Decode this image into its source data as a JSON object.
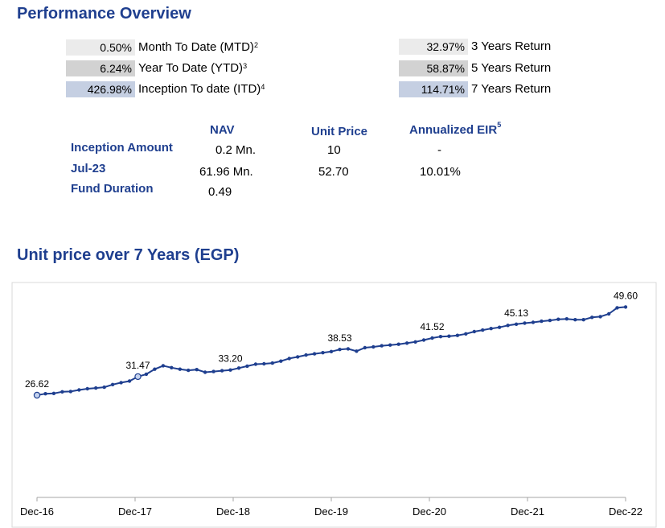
{
  "headings": {
    "performance": "Performance Overview",
    "chart": "Unit price over 7 Years (EGP)"
  },
  "returns_left": [
    {
      "value": "0.50%",
      "label": "Month To Date (MTD)",
      "note": "2"
    },
    {
      "value": "6.24%",
      "label": "Year To Date (YTD)",
      "note": "3"
    },
    {
      "value": "426.98%",
      "label": "Inception To date (ITD)",
      "note": "4"
    }
  ],
  "returns_right": [
    {
      "value": "32.97%",
      "label": "3 Years Return"
    },
    {
      "value": "58.87%",
      "label": "5 Years Return"
    },
    {
      "value": "114.71%",
      "label": "7 Years Return"
    }
  ],
  "fund_table": {
    "headers": {
      "nav": "NAV",
      "unit_price": "Unit Price",
      "eir": "Annualized EIR",
      "eir_note": "5"
    },
    "rows": [
      {
        "label": "Inception Amount",
        "nav": "0.2",
        "nav_unit": "Mn.",
        "unit_price": "10",
        "eir": "-"
      },
      {
        "label": "Jul-23",
        "nav": "61.96",
        "nav_unit": "Mn.",
        "unit_price": "52.70",
        "eir": "10.01%"
      },
      {
        "label": "Fund Duration",
        "nav": "0.49",
        "nav_unit": "",
        "unit_price": "",
        "eir": ""
      }
    ]
  },
  "colors": {
    "heading": "#1f3f8f",
    "line": "#1f3f8f",
    "box_light": "#ebebeb",
    "box_mid": "#d2d2d2",
    "box_blue": "#c5cfe2"
  },
  "chart_data": {
    "type": "line",
    "title": "Unit price over 7 Years (EGP)",
    "xlabel": "",
    "ylabel": "",
    "ylim": [
      0,
      52
    ],
    "x_ticks": [
      "Dec-16",
      "Dec-17",
      "Dec-18",
      "Dec-19",
      "Dec-20",
      "Dec-21",
      "Dec-22"
    ],
    "grid": false,
    "series": [
      {
        "values": [
          26.62,
          27.0,
          27.1,
          27.5,
          27.6,
          28.0,
          28.3,
          28.5,
          28.7,
          29.4,
          29.9,
          30.3,
          31.47,
          32.1,
          33.4,
          34.3,
          33.8,
          33.4,
          33.1,
          33.3,
          32.6,
          32.8,
          33.0,
          33.2,
          33.7,
          34.2,
          34.7,
          34.8,
          35.0,
          35.5,
          36.2,
          36.6,
          37.1,
          37.4,
          37.7,
          38.0,
          38.53,
          38.7,
          38.1,
          39.0,
          39.2,
          39.5,
          39.7,
          39.9,
          40.2,
          40.5,
          41.0,
          41.52,
          41.9,
          42.0,
          42.2,
          42.6,
          43.2,
          43.6,
          44.0,
          44.3,
          44.8,
          45.13,
          45.4,
          45.6,
          45.9,
          46.1,
          46.4,
          46.5,
          46.3,
          46.3,
          46.9,
          47.1,
          47.8,
          49.4,
          49.6
        ],
        "data_labels": [
          {
            "index": 0,
            "text": "26.62"
          },
          {
            "index": 12,
            "text": "31.47"
          },
          {
            "index": 23,
            "text": "33.20"
          },
          {
            "index": 36,
            "text": "38.53"
          },
          {
            "index": 47,
            "text": "41.52"
          },
          {
            "index": 57,
            "text": "45.13"
          },
          {
            "index": 70,
            "text": "49.60"
          }
        ],
        "hollow_markers": [
          0,
          12
        ]
      }
    ]
  }
}
